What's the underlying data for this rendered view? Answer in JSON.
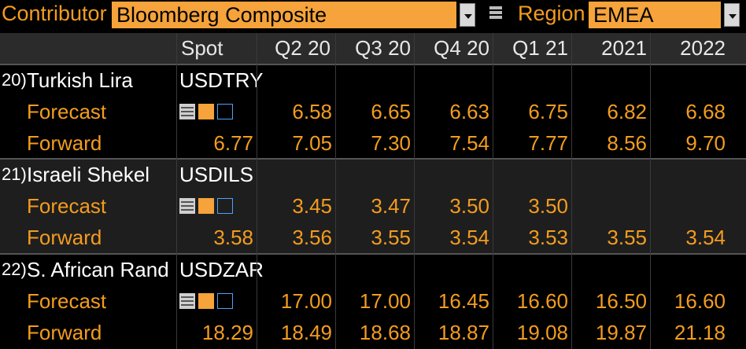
{
  "toolbar": {
    "contributor_label": "Contributor",
    "contributor_value": "Bloomberg Composite",
    "region_label": "Region",
    "region_value": "EMEA"
  },
  "columns": [
    "Spot",
    "Q2 20",
    "Q3 20",
    "Q4 20",
    "Q1 21",
    "2021",
    "2022"
  ],
  "sections": [
    {
      "index": "20)",
      "name": "Turkish Lira",
      "ticker": "USDTRY",
      "forecast_label": "Forecast",
      "forward_label": "Forward",
      "forecast": [
        "",
        "6.58",
        "6.65",
        "6.63",
        "6.75",
        "6.82",
        "6.68"
      ],
      "forward": [
        "6.77",
        "7.05",
        "7.30",
        "7.54",
        "7.77",
        "8.56",
        "9.70"
      ]
    },
    {
      "index": "21)",
      "name": "Israeli Shekel",
      "ticker": "USDILS",
      "forecast_label": "Forecast",
      "forward_label": "Forward",
      "forecast": [
        "",
        "3.45",
        "3.47",
        "3.50",
        "3.50",
        "",
        ""
      ],
      "forward": [
        "3.58",
        "3.56",
        "3.55",
        "3.54",
        "3.53",
        "3.55",
        "3.54"
      ]
    },
    {
      "index": "22)",
      "name": "S. African Rand",
      "ticker": "USDZAR",
      "forecast_label": "Forecast",
      "forward_label": "Forward",
      "forecast": [
        "",
        "17.00",
        "17.00",
        "16.45",
        "16.60",
        "16.50",
        "16.60"
      ],
      "forward": [
        "18.29",
        "18.49",
        "18.68",
        "18.87",
        "19.08",
        "19.87",
        "21.18"
      ]
    }
  ],
  "colors": {
    "accent": "#f39c1f",
    "field_bg": "#f5a33a",
    "header_bg": "#2b2b2b",
    "section_bg_alt": "#1e1e1e"
  },
  "icons": [
    "table-icon",
    "line-chart-icon",
    "bar-chart-icon"
  ]
}
